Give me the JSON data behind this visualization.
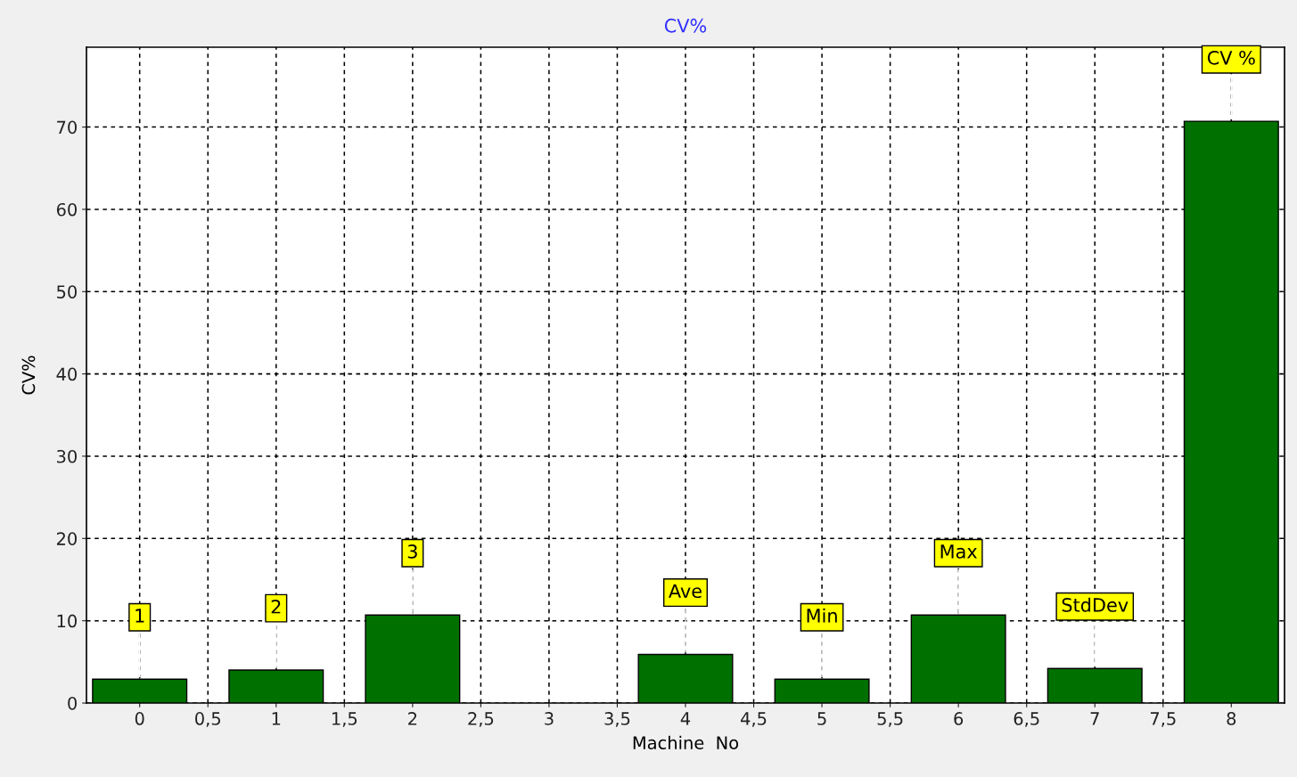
{
  "chart_data": {
    "type": "bar",
    "title": "CV%",
    "xlabel": "Machine  No",
    "ylabel": "CV%",
    "x": [
      0,
      1,
      2,
      4,
      5,
      6,
      7,
      8
    ],
    "values": [
      2.9,
      4.0,
      10.7,
      5.9,
      2.9,
      10.7,
      4.2,
      70.7
    ],
    "color": "#007000",
    "xlim": [
      -0.39,
      8.39
    ],
    "ylim": [
      0,
      79.7
    ],
    "xticks": [
      0,
      {
        "value": 0.5,
        "label": "0,5"
      },
      1,
      {
        "value": 1.5,
        "label": "1,5"
      },
      2,
      {
        "value": 2.5,
        "label": "2,5"
      },
      3,
      {
        "value": 3.5,
        "label": "3,5"
      },
      4,
      {
        "value": 4.5,
        "label": "4,5"
      },
      5,
      {
        "value": 5.5,
        "label": "5,5"
      },
      6,
      {
        "value": 6.5,
        "label": "6,5"
      },
      7,
      {
        "value": 7.5,
        "label": "7,5"
      },
      8
    ],
    "yticks": [
      0,
      10,
      20,
      30,
      40,
      50,
      60,
      70
    ],
    "grid": true,
    "annotations": [
      {
        "text": "1",
        "x": 0,
        "y": 2.9
      },
      {
        "text": "2",
        "x": 1,
        "y": 4.0
      },
      {
        "text": "3",
        "x": 2,
        "y": 10.7
      },
      {
        "text": "Ave",
        "x": 4,
        "y": 5.9
      },
      {
        "text": "Min",
        "x": 5,
        "y": 2.9
      },
      {
        "text": "Max",
        "x": 6,
        "y": 10.7
      },
      {
        "text": "StdDev",
        "x": 7,
        "y": 4.2
      },
      {
        "text": "CV %",
        "x": 8,
        "y": 70.7
      }
    ]
  }
}
